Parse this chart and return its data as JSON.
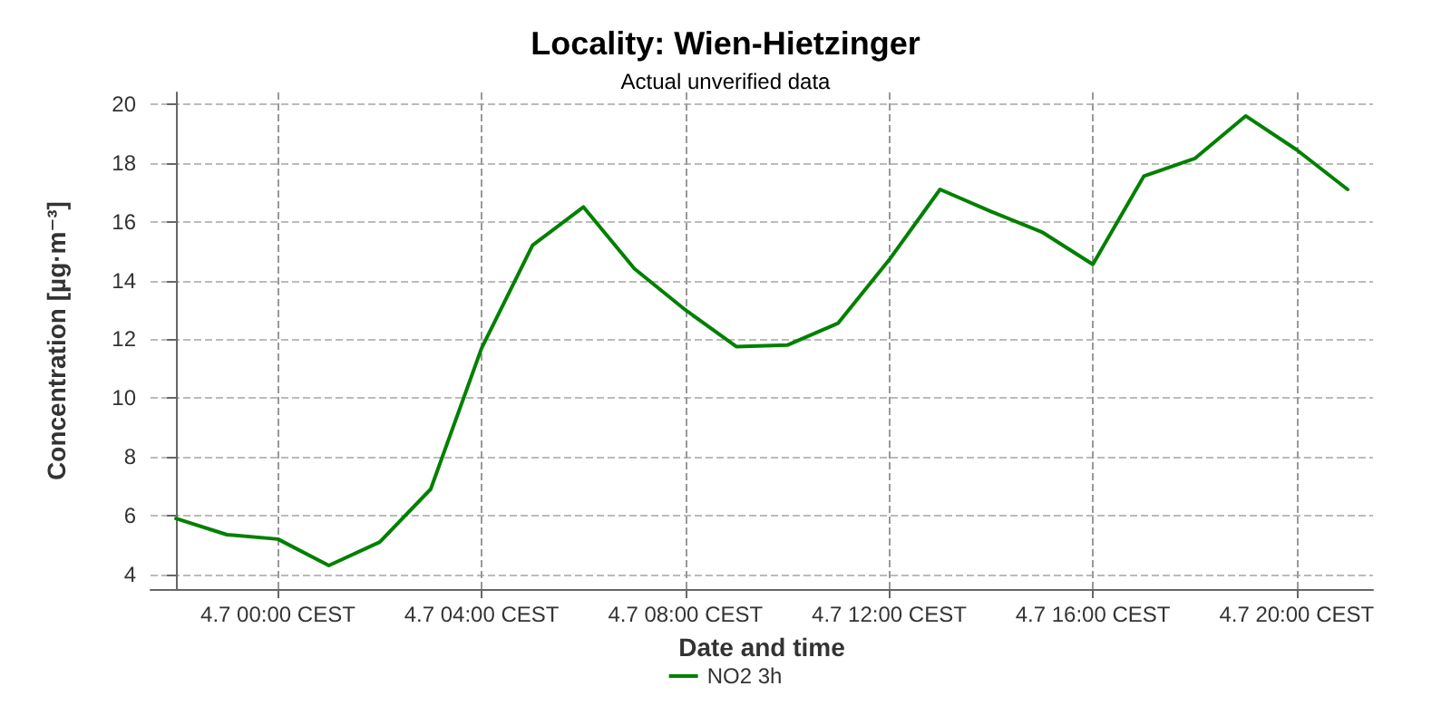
{
  "chart_data": {
    "type": "line",
    "title": "Locality: Wien-Hietzinger",
    "subtitle": "Actual unverified data",
    "xlabel": "Date and time",
    "ylabel": "Concentration [µg·m⁻³]",
    "categories": [
      null,
      null,
      "4.7 00:00 CEST",
      null,
      null,
      null,
      "4.7 04:00 CEST",
      null,
      null,
      null,
      "4.7 08:00 CEST",
      null,
      null,
      null,
      "4.7 12:00 CEST",
      null,
      null,
      null,
      "4.7 16:00 CEST",
      null,
      null,
      null,
      "4.7 20:00 CEST",
      null
    ],
    "series": [
      {
        "name": "NO2 3h",
        "color": "#008000",
        "values": [
          5.9,
          5.35,
          5.2,
          4.3,
          5.1,
          6.9,
          11.7,
          15.2,
          16.5,
          14.4,
          13.0,
          11.75,
          11.8,
          12.55,
          14.7,
          17.1,
          16.35,
          15.65,
          14.55,
          17.55,
          18.15,
          19.6,
          18.45,
          17.1
        ]
      }
    ],
    "ylim": [
      3.5,
      20.4
    ],
    "yticks": [
      4,
      6,
      8,
      10,
      12,
      14,
      16,
      18,
      20
    ],
    "grid": true,
    "legend": "bottom",
    "marker": "none",
    "line_style": "solid"
  }
}
